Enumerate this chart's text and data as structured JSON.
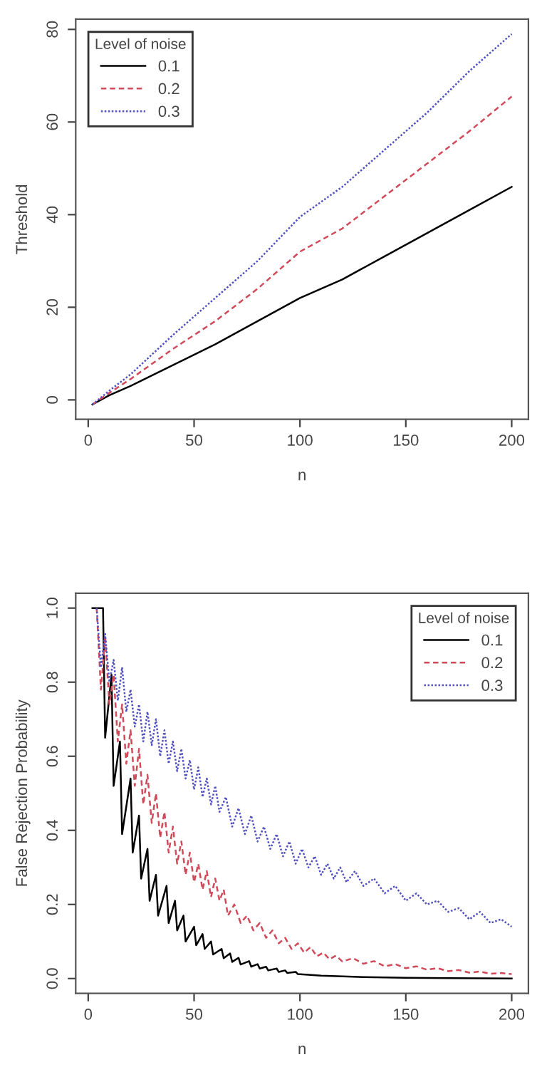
{
  "chart_data": [
    {
      "type": "line",
      "xlabel": "n",
      "ylabel": "Threshold",
      "legend_title": "Level of noise",
      "legend": "top left",
      "grid": false,
      "xlim": [
        -5.9,
        207.9
      ],
      "ylim": [
        -4.2,
        82.2
      ],
      "xticks": [
        0,
        50,
        100,
        150,
        200
      ],
      "yticks": [
        0,
        20,
        40,
        60,
        80
      ],
      "series": [
        {
          "name": "0.1",
          "color": "#000000",
          "line_style": "solid",
          "x": [
            2,
            10,
            20,
            40,
            60,
            80,
            100,
            120,
            140,
            160,
            180,
            200
          ],
          "values": [
            -1,
            1,
            3,
            7.5,
            12,
            17,
            22,
            26,
            31,
            36,
            41,
            46
          ]
        },
        {
          "name": "0.2",
          "color": "#d04a5a",
          "line_style": "dashed",
          "x": [
            2,
            10,
            20,
            40,
            60,
            80,
            100,
            120,
            140,
            160,
            180,
            200
          ],
          "values": [
            -1,
            1.5,
            4.5,
            11,
            17,
            24,
            32,
            37,
            44,
            51,
            58,
            65.5
          ]
        },
        {
          "name": "0.3",
          "color": "#5050c0",
          "line_style": "dotted",
          "x": [
            2,
            10,
            20,
            40,
            60,
            80,
            100,
            120,
            140,
            160,
            180,
            200
          ],
          "values": [
            -1,
            2,
            5.5,
            14,
            22,
            30,
            39.5,
            46,
            54,
            62,
            71,
            79
          ]
        }
      ]
    },
    {
      "type": "line",
      "xlabel": "n",
      "ylabel": "False Rejection Probability",
      "legend_title": "Level of noise",
      "legend": "top right",
      "grid": false,
      "xlim": [
        -5.9,
        207.9
      ],
      "ylim": [
        -0.04,
        1.04
      ],
      "xticks": [
        0,
        50,
        100,
        150,
        200
      ],
      "yticks": [
        {
          "value": 0,
          "label": "0.0"
        },
        0.2,
        0.4,
        0.6,
        0.8,
        {
          "value": 1,
          "label": "1.0"
        }
      ],
      "series": [
        {
          "name": "0.1",
          "color": "#000000",
          "line_style": "solid",
          "x": [
            2,
            7,
            8,
            11,
            12,
            15,
            16,
            20,
            21,
            24,
            25,
            28,
            29,
            32,
            33,
            37,
            38,
            41,
            42,
            45,
            46,
            50,
            51,
            54,
            55,
            58,
            59,
            63,
            64,
            67,
            68,
            71,
            72,
            76,
            77,
            80,
            81,
            84,
            85,
            89,
            90,
            93,
            94,
            98,
            99,
            110,
            120,
            130,
            140,
            150,
            170,
            200
          ],
          "values": [
            1.0,
            1.0,
            0.65,
            0.82,
            0.52,
            0.64,
            0.39,
            0.54,
            0.34,
            0.44,
            0.27,
            0.35,
            0.21,
            0.28,
            0.17,
            0.25,
            0.15,
            0.21,
            0.13,
            0.17,
            0.1,
            0.14,
            0.09,
            0.12,
            0.08,
            0.1,
            0.065,
            0.08,
            0.055,
            0.068,
            0.045,
            0.056,
            0.038,
            0.047,
            0.032,
            0.039,
            0.027,
            0.032,
            0.022,
            0.027,
            0.018,
            0.022,
            0.015,
            0.018,
            0.012,
            0.008,
            0.006,
            0.004,
            0.003,
            0.002,
            0.001,
            0
          ]
        },
        {
          "name": "0.2",
          "color": "#d04a5a",
          "line_style": "dashed",
          "x": [
            4,
            6,
            8,
            10,
            12,
            14,
            16,
            18,
            20,
            22,
            24,
            26,
            28,
            30,
            32,
            34,
            36,
            38,
            40,
            42,
            44,
            46,
            48,
            50,
            52,
            54,
            56,
            58,
            60,
            62,
            64,
            66,
            69,
            72,
            75,
            78,
            81,
            84,
            87,
            90,
            93,
            96,
            99,
            102,
            105,
            108,
            111,
            114,
            117,
            120,
            125,
            130,
            135,
            140,
            145,
            150,
            155,
            160,
            165,
            170,
            175,
            180,
            185,
            190,
            195,
            200
          ],
          "values": [
            1.0,
            0.78,
            0.92,
            0.74,
            0.82,
            0.64,
            0.74,
            0.58,
            0.67,
            0.52,
            0.62,
            0.47,
            0.55,
            0.42,
            0.5,
            0.38,
            0.45,
            0.34,
            0.41,
            0.31,
            0.37,
            0.28,
            0.34,
            0.26,
            0.31,
            0.24,
            0.29,
            0.22,
            0.27,
            0.21,
            0.24,
            0.17,
            0.2,
            0.15,
            0.17,
            0.13,
            0.15,
            0.11,
            0.13,
            0.095,
            0.11,
            0.08,
            0.095,
            0.07,
            0.085,
            0.06,
            0.07,
            0.052,
            0.062,
            0.046,
            0.055,
            0.04,
            0.047,
            0.033,
            0.039,
            0.028,
            0.033,
            0.024,
            0.028,
            0.02,
            0.023,
            0.016,
            0.019,
            0.013,
            0.015,
            0.012
          ]
        },
        {
          "name": "0.3",
          "color": "#5050c0",
          "line_style": "dotted",
          "x": [
            4,
            6,
            8,
            10,
            12,
            14,
            16,
            18,
            20,
            22,
            24,
            26,
            28,
            30,
            32,
            34,
            36,
            38,
            40,
            42,
            44,
            46,
            48,
            50,
            52,
            54,
            56,
            58,
            60,
            62,
            65,
            68,
            71,
            74,
            77,
            80,
            83,
            86,
            89,
            92,
            95,
            98,
            101,
            104,
            107,
            110,
            113,
            116,
            119,
            122,
            126,
            130,
            135,
            140,
            145,
            150,
            155,
            160,
            165,
            170,
            175,
            180,
            185,
            190,
            195,
            200
          ],
          "values": [
            1.0,
            0.84,
            0.93,
            0.8,
            0.86,
            0.75,
            0.84,
            0.72,
            0.78,
            0.68,
            0.74,
            0.64,
            0.72,
            0.63,
            0.7,
            0.6,
            0.67,
            0.58,
            0.64,
            0.56,
            0.62,
            0.54,
            0.59,
            0.51,
            0.57,
            0.49,
            0.54,
            0.47,
            0.52,
            0.45,
            0.49,
            0.41,
            0.46,
            0.39,
            0.44,
            0.37,
            0.41,
            0.35,
            0.39,
            0.33,
            0.37,
            0.31,
            0.35,
            0.3,
            0.33,
            0.28,
            0.31,
            0.27,
            0.3,
            0.26,
            0.29,
            0.25,
            0.27,
            0.23,
            0.25,
            0.21,
            0.23,
            0.2,
            0.21,
            0.18,
            0.19,
            0.16,
            0.18,
            0.15,
            0.16,
            0.14
          ]
        }
      ]
    }
  ]
}
